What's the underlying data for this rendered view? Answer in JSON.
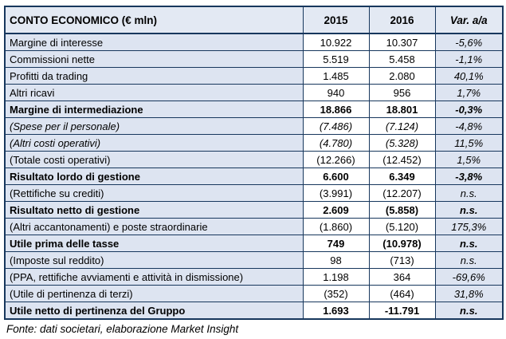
{
  "chart_data": {
    "type": "table",
    "title": "CONTO ECONOMICO (€ mln)",
    "columns": [
      "CONTO ECONOMICO (€ mln)",
      "2015",
      "2016",
      "Var. a/a"
    ],
    "rows": [
      {
        "label": "Margine di interesse",
        "v2015": "10.922",
        "v2016": "10.307",
        "var": "-5,6%",
        "style": "normal"
      },
      {
        "label": "Commissioni nette",
        "v2015": "5.519",
        "v2016": "5.458",
        "var": "-1,1%",
        "style": "normal"
      },
      {
        "label": "Profitti da trading",
        "v2015": "1.485",
        "v2016": "2.080",
        "var": "40,1%",
        "style": "normal"
      },
      {
        "label": "Altri ricavi",
        "v2015": "940",
        "v2016": "956",
        "var": "1,7%",
        "style": "normal"
      },
      {
        "label": "Margine di intermediazione",
        "v2015": "18.866",
        "v2016": "18.801",
        "var": "-0,3%",
        "style": "bold"
      },
      {
        "label": "(Spese per il personale)",
        "v2015": "(7.486)",
        "v2016": "(7.124)",
        "var": "-4,8%",
        "style": "italic"
      },
      {
        "label": "(Altri costi operativi)",
        "v2015": "(4.780)",
        "v2016": "(5.328)",
        "var": "11,5%",
        "style": "italic"
      },
      {
        "label": "(Totale costi operativi)",
        "v2015": "(12.266)",
        "v2016": "(12.452)",
        "var": "1,5%",
        "style": "normal"
      },
      {
        "label": "Risultato lordo di gestione",
        "v2015": "6.600",
        "v2016": "6.349",
        "var": "-3,8%",
        "style": "bold"
      },
      {
        "label": "(Rettifiche su crediti)",
        "v2015": "(3.991)",
        "v2016": "(12.207)",
        "var": "n.s.",
        "style": "normal"
      },
      {
        "label": "Risultato netto di gestione",
        "v2015": "2.609",
        "v2016": "(5.858)",
        "var": "n.s.",
        "style": "bold"
      },
      {
        "label": "(Altri accantonamenti) e poste straordinarie",
        "v2015": "(1.860)",
        "v2016": "(5.120)",
        "var": "175,3%",
        "style": "normal"
      },
      {
        "label": "Utile prima delle tasse",
        "v2015": "749",
        "v2016": "(10.978)",
        "var": "n.s.",
        "style": "bold"
      },
      {
        "label": "(Imposte sul reddito)",
        "v2015": "98",
        "v2016": "(713)",
        "var": "n.s.",
        "style": "normal"
      },
      {
        "label": "(PPA, rettifiche avviamenti e attività in dismissione)",
        "v2015": "1.198",
        "v2016": "364",
        "var": "-69,6%",
        "style": "normal"
      },
      {
        "label": "(Utile di pertinenza di terzi)",
        "v2015": "(352)",
        "v2016": "(464)",
        "var": "31,8%",
        "style": "normal"
      },
      {
        "label": "Utile netto di pertinenza del Gruppo",
        "v2015": "1.693",
        "v2016": "-11.791",
        "var": "n.s.",
        "style": "bold"
      }
    ],
    "source": "Fonte: dati societari, elaborazione Market Insight",
    "layout": {
      "grid": "full-borders",
      "shaded_columns": [
        "label",
        "var"
      ],
      "value_columns_bg": "white"
    }
  },
  "colors": {
    "border": "#17375d",
    "shaded_cell_bg": "#dde4f1",
    "header_bg": "#e3e9f3",
    "value_cell_bg": "#ffffff",
    "text": "#000000",
    "page_bg": "#ffffff"
  }
}
